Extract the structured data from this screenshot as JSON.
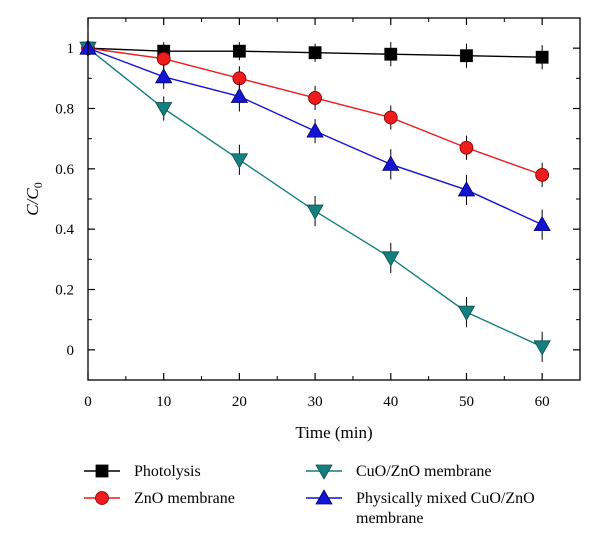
{
  "chart_data": {
    "type": "line",
    "xlabel": "Time (min)",
    "ylabel": {
      "main": "C/C",
      "sub": "0"
    },
    "xlim": [
      0,
      65
    ],
    "ylim": [
      -0.1,
      1.1
    ],
    "xticks": [
      0,
      10,
      20,
      30,
      40,
      50,
      60
    ],
    "yticks": [
      0,
      0.2,
      0.4,
      0.6,
      0.8,
      1
    ],
    "legend_position": "below",
    "series": [
      {
        "name": "Photolysis",
        "marker": "square",
        "color": "#000000",
        "x": [
          0,
          10,
          20,
          30,
          40,
          50,
          60
        ],
        "y": [
          1.0,
          0.99,
          0.99,
          0.985,
          0.98,
          0.975,
          0.97
        ],
        "err": [
          0,
          0.03,
          0.03,
          0.03,
          0.04,
          0.04,
          0.04
        ]
      },
      {
        "name": "ZnO membrane",
        "marker": "circle",
        "color": "#ee1c1c",
        "x": [
          0,
          10,
          20,
          30,
          40,
          50,
          60
        ],
        "y": [
          1.0,
          0.965,
          0.9,
          0.835,
          0.77,
          0.67,
          0.58
        ],
        "err": [
          0,
          0.03,
          0.04,
          0.04,
          0.04,
          0.04,
          0.04
        ]
      },
      {
        "name": "CuO/ZnO membrane",
        "marker": "triangle-down",
        "color": "#157f7f",
        "x": [
          0,
          10,
          20,
          30,
          40,
          50,
          60
        ],
        "y": [
          1.0,
          0.8,
          0.63,
          0.46,
          0.305,
          0.125,
          0.01
        ],
        "err": [
          0,
          0.04,
          0.05,
          0.05,
          0.05,
          0.05,
          0.05
        ]
      },
      {
        "name": "Physically mixed CuO/ZnO membrane",
        "marker": "triangle-up",
        "color": "#1414d4",
        "x": [
          0,
          10,
          20,
          30,
          40,
          50,
          60
        ],
        "y": [
          1.0,
          0.905,
          0.84,
          0.725,
          0.615,
          0.53,
          0.415
        ],
        "err": [
          0,
          0.04,
          0.05,
          0.04,
          0.05,
          0.05,
          0.05
        ]
      }
    ]
  }
}
